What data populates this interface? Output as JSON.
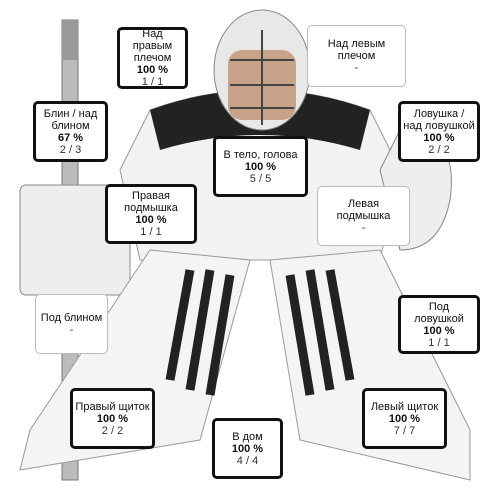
{
  "zones": [
    {
      "label": "Над правым плечом",
      "percent": "100 %",
      "count": "1 / 1"
    },
    {
      "label": "Над левым плечом",
      "count": "-"
    },
    {
      "label": "Блин / над блином",
      "percent": "67 %",
      "count": "2 / 3"
    },
    {
      "label": "Ловушка / над ловушкой",
      "percent": "100 %",
      "count": "2 / 2"
    },
    {
      "label": "В тело, голова",
      "percent": "100 %",
      "count": "5 / 5"
    },
    {
      "label": "Правая подмышка",
      "percent": "100 %",
      "count": "1 / 1"
    },
    {
      "label": "Левая подмышка",
      "count": "-"
    },
    {
      "label": "Под блином",
      "count": "-"
    },
    {
      "label": "Под ловушкой",
      "percent": "100 %",
      "count": "1 / 1"
    },
    {
      "label": "Правый щиток",
      "percent": "100 %",
      "count": "2 / 2"
    },
    {
      "label": "Левый щиток",
      "percent": "100 %",
      "count": "7 / 7"
    },
    {
      "label": "В дом",
      "percent": "100 %",
      "count": "4 / 4"
    }
  ]
}
